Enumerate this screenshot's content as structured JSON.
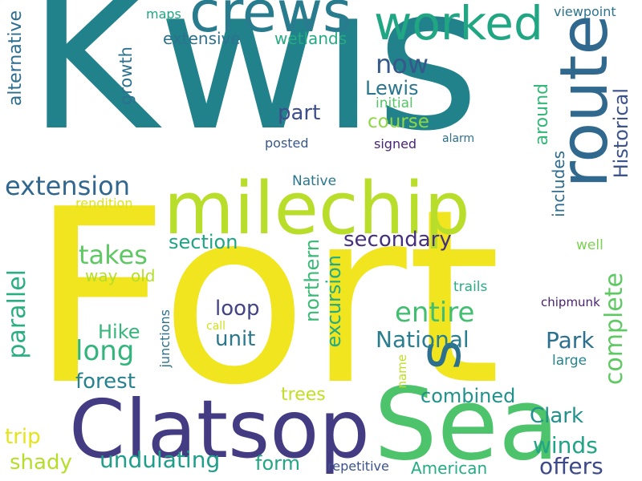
{
  "words": [
    {
      "text": "Kwis",
      "color": "#21828c"
    },
    {
      "text": "Fort",
      "color": "#f0e51f"
    },
    {
      "text": "Sea",
      "color": "#4dc36b"
    },
    {
      "text": "Clatsop",
      "color": "#433c83"
    },
    {
      "text": "milechip",
      "color": "#b8de2b"
    },
    {
      "text": "crews",
      "color": "#287c8e"
    },
    {
      "text": "worked",
      "color": "#21a684"
    },
    {
      "text": "route",
      "color": "#30688e"
    },
    {
      "text": "s",
      "color": "#2d6f8e"
    },
    {
      "text": "extension",
      "color": "#31678e"
    },
    {
      "text": "now",
      "color": "#35598b"
    },
    {
      "text": "Lewis",
      "color": "#2b758e"
    },
    {
      "text": "part",
      "color": "#3c4f8a"
    },
    {
      "text": "course",
      "color": "#8fd744"
    },
    {
      "text": "extensive",
      "color": "#2c728e"
    },
    {
      "text": "wetlands",
      "color": "#25ab82"
    },
    {
      "text": "maps",
      "color": "#21a585"
    },
    {
      "text": "viewpoint",
      "color": "#2c738e"
    },
    {
      "text": "alternative",
      "color": "#2e6d8e"
    },
    {
      "text": "growth",
      "color": "#2c718e"
    },
    {
      "text": "initial",
      "color": "#55c667"
    },
    {
      "text": "posted",
      "color": "#38588c"
    },
    {
      "text": "signed",
      "color": "#482475"
    },
    {
      "text": "alarm",
      "color": "#2d708e"
    },
    {
      "text": "around",
      "color": "#35b779"
    },
    {
      "text": "includes",
      "color": "#2f6c8e"
    },
    {
      "text": "Historical",
      "color": "#3b528b"
    },
    {
      "text": "Native",
      "color": "#2a768e"
    },
    {
      "text": "rendition",
      "color": "#dde318"
    },
    {
      "text": "section",
      "color": "#20a386"
    },
    {
      "text": "secondary",
      "color": "#46307e"
    },
    {
      "text": "takes",
      "color": "#5ec962"
    },
    {
      "text": "way",
      "color": "#b5de2b"
    },
    {
      "text": "old",
      "color": "#b5de2b"
    },
    {
      "text": "parallel",
      "color": "#29af7f"
    },
    {
      "text": "northern",
      "color": "#3aba76"
    },
    {
      "text": "excursion",
      "color": "#23a983"
    },
    {
      "text": "loop",
      "color": "#414487"
    },
    {
      "text": "entire",
      "color": "#42be71"
    },
    {
      "text": "unit",
      "color": "#2a788e"
    },
    {
      "text": "long",
      "color": "#31b57b"
    },
    {
      "text": "Hike",
      "color": "#35b779"
    },
    {
      "text": "National",
      "color": "#287d8e"
    },
    {
      "text": "Park",
      "color": "#2d708e"
    },
    {
      "text": "complete",
      "color": "#5ec962"
    },
    {
      "text": "well",
      "color": "#7ad151"
    },
    {
      "text": "trails",
      "color": "#29af7f"
    },
    {
      "text": "chipmunk",
      "color": "#481f70"
    },
    {
      "text": "forest",
      "color": "#26828e"
    },
    {
      "text": "junctions",
      "color": "#2c718e"
    },
    {
      "text": "call",
      "color": "#d0e11c"
    },
    {
      "text": "name",
      "color": "#bddf26"
    },
    {
      "text": "large",
      "color": "#25848e"
    },
    {
      "text": "trees",
      "color": "#c2df23"
    },
    {
      "text": "combined",
      "color": "#20928c"
    },
    {
      "text": "Clark",
      "color": "#21918c"
    },
    {
      "text": "trip",
      "color": "#e5e419"
    },
    {
      "text": "shady",
      "color": "#b5de2b"
    },
    {
      "text": "undulating",
      "color": "#1f9e89"
    },
    {
      "text": "form",
      "color": "#22a785"
    },
    {
      "text": "winds",
      "color": "#20a486"
    },
    {
      "text": "offers",
      "color": "#3e4989"
    },
    {
      "text": "repetitive",
      "color": "#3b528b"
    },
    {
      "text": "American",
      "color": "#25ac82"
    }
  ]
}
